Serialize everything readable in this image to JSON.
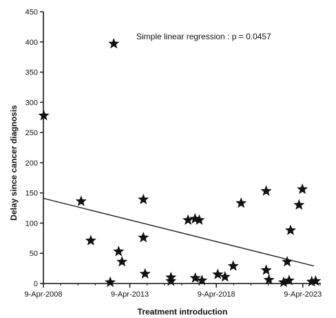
{
  "chart_data": {
    "type": "scatter",
    "title": "",
    "xlabel": "Treatment introduction",
    "ylabel": "Delay since cancer diagnosis",
    "annotation": "Simple linear regression : p = 0.0457",
    "x_axis_type": "date",
    "xlim": [
      "2008-04-09",
      "2024-04-25"
    ],
    "ylim": [
      0,
      450
    ],
    "x_ticks": [
      {
        "date": "2008-04-09",
        "label": "9-Apr-2008"
      },
      {
        "date": "2013-04-09",
        "label": "9-Apr-2013"
      },
      {
        "date": "2018-04-09",
        "label": "9-Apr-2018"
      },
      {
        "date": "2023-04-09",
        "label": "9-Apr-2023"
      }
    ],
    "y_ticks": [
      0,
      50,
      100,
      150,
      200,
      250,
      300,
      350,
      400,
      450
    ],
    "grid": false,
    "marker": "star",
    "marker_color": "#111111",
    "points": [
      {
        "x": "2008-04-18",
        "y": 278
      },
      {
        "x": "2010-06-15",
        "y": 136
      },
      {
        "x": "2011-01-05",
        "y": 71
      },
      {
        "x": "2012-02-20",
        "y": 2
      },
      {
        "x": "2012-05-05",
        "y": 397
      },
      {
        "x": "2012-08-15",
        "y": 53
      },
      {
        "x": "2012-10-25",
        "y": 36
      },
      {
        "x": "2014-01-20",
        "y": 139
      },
      {
        "x": "2014-01-20",
        "y": 76
      },
      {
        "x": "2014-02-25",
        "y": 16
      },
      {
        "x": "2015-08-25",
        "y": 10
      },
      {
        "x": "2015-08-25",
        "y": 4
      },
      {
        "x": "2016-08-20",
        "y": 105
      },
      {
        "x": "2017-01-15",
        "y": 107
      },
      {
        "x": "2017-04-15",
        "y": 105
      },
      {
        "x": "2017-01-20",
        "y": 9
      },
      {
        "x": "2017-06-10",
        "y": 5
      },
      {
        "x": "2018-05-10",
        "y": 15
      },
      {
        "x": "2018-10-10",
        "y": 11
      },
      {
        "x": "2019-04-01",
        "y": 29
      },
      {
        "x": "2019-09-15",
        "y": 133
      },
      {
        "x": "2021-02-25",
        "y": 153
      },
      {
        "x": "2021-02-25",
        "y": 22
      },
      {
        "x": "2021-04-25",
        "y": 6
      },
      {
        "x": "2022-03-01",
        "y": 2
      },
      {
        "x": "2022-05-15",
        "y": 36
      },
      {
        "x": "2022-06-25",
        "y": 5
      },
      {
        "x": "2022-07-25",
        "y": 88
      },
      {
        "x": "2023-01-20",
        "y": 130
      },
      {
        "x": "2023-04-01",
        "y": 156
      },
      {
        "x": "2023-10-15",
        "y": 3
      },
      {
        "x": "2024-01-05",
        "y": 4
      }
    ],
    "regression_line": [
      {
        "x": "2008-04-09",
        "y": 141
      },
      {
        "x": "2023-12-01",
        "y": 29
      }
    ]
  }
}
